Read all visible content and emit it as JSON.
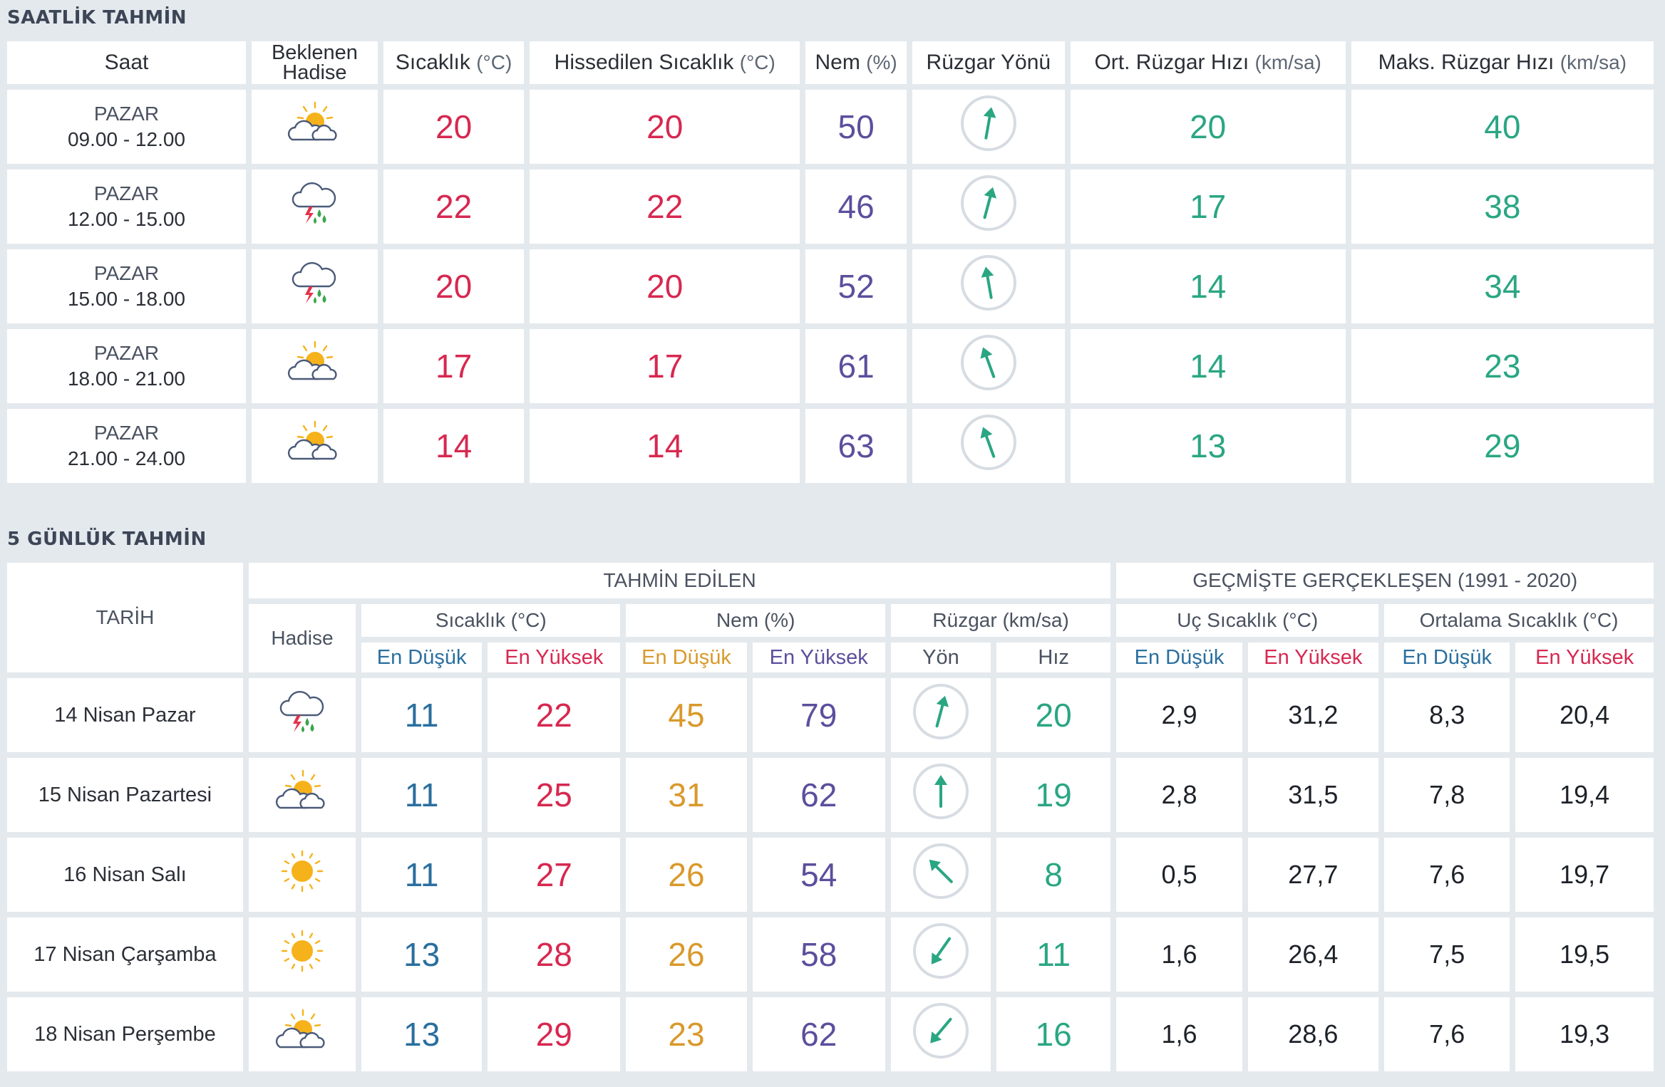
{
  "hourly": {
    "title": "SAATLİK TAHMİN",
    "headers": {
      "saat": "Saat",
      "hadise_1": "Beklenen",
      "hadise_2": "Hadise",
      "sicaklik": "Sıcaklık",
      "sicaklik_unit": "(°C)",
      "hissedilen": "Hissedilen Sıcaklık",
      "hissedilen_unit": "(°C)",
      "nem": "Nem",
      "nem_unit": "(%)",
      "ruzgar_yonu": "Rüzgar Yönü",
      "ort_ruzgar": "Ort. Rüzgar Hızı",
      "ort_ruzgar_unit": "(km/sa)",
      "maks_ruzgar": "Maks. Rüzgar Hızı",
      "maks_ruzgar_unit": "(km/sa)"
    },
    "rows": [
      {
        "day": "PAZAR",
        "time": "09.00 - 12.00",
        "icon": "partly-cloudy-icon",
        "temp": "20",
        "feels": "20",
        "humidity": "50",
        "wind_dir_deg": 190,
        "wind_avg": "20",
        "wind_max": "40"
      },
      {
        "day": "PAZAR",
        "time": "12.00 - 15.00",
        "icon": "thunderstorm-rain-icon",
        "temp": "22",
        "feels": "22",
        "humidity": "46",
        "wind_dir_deg": 195,
        "wind_avg": "17",
        "wind_max": "38"
      },
      {
        "day": "PAZAR",
        "time": "15.00 - 18.00",
        "icon": "thunderstorm-rain-icon",
        "temp": "20",
        "feels": "20",
        "humidity": "52",
        "wind_dir_deg": 170,
        "wind_avg": "14",
        "wind_max": "34"
      },
      {
        "day": "PAZAR",
        "time": "18.00 - 21.00",
        "icon": "partly-cloudy-icon",
        "temp": "17",
        "feels": "17",
        "humidity": "61",
        "wind_dir_deg": 160,
        "wind_avg": "14",
        "wind_max": "23"
      },
      {
        "day": "PAZAR",
        "time": "21.00 - 24.00",
        "icon": "partly-cloudy-icon",
        "temp": "14",
        "feels": "14",
        "humidity": "63",
        "wind_dir_deg": 160,
        "wind_avg": "13",
        "wind_max": "29"
      }
    ]
  },
  "daily": {
    "title": "5 GÜNLÜK TAHMİN",
    "headers": {
      "tarih": "TARİH",
      "tahmin_edilen": "TAHMİN EDİLEN",
      "gecmiste": "GEÇMİŞTE GERÇEKLEŞEN (1991 - 2020)",
      "hadise": "Hadise",
      "sicaklik": "Sıcaklık (°C)",
      "nem": "Nem (%)",
      "ruzgar": "Rüzgar (km/sa)",
      "uc_sicaklik": "Uç Sıcaklık (°C)",
      "ortalama_sicaklik": "Ortalama Sıcaklık (°C)",
      "en_dusuk": "En Düşük",
      "en_yuksek": "En Yüksek",
      "yon": "Yön",
      "hiz": "Hız"
    },
    "rows": [
      {
        "date": "14 Nisan Pazar",
        "icon": "thunderstorm-rain-icon",
        "temp_min": "11",
        "temp_max": "22",
        "hum_min": "45",
        "hum_max": "79",
        "wind_dir_deg": 195,
        "wind_speed": "20",
        "ext_min": "2,9",
        "ext_max": "31,2",
        "avg_min": "8,3",
        "avg_max": "20,4"
      },
      {
        "date": "15 Nisan Pazartesi",
        "icon": "partly-cloudy-icon",
        "temp_min": "11",
        "temp_max": "25",
        "hum_min": "31",
        "hum_max": "62",
        "wind_dir_deg": 180,
        "wind_speed": "19",
        "ext_min": "2,8",
        "ext_max": "31,5",
        "avg_min": "7,8",
        "avg_max": "19,4"
      },
      {
        "date": "16 Nisan Salı",
        "icon": "sunny-icon",
        "temp_min": "11",
        "temp_max": "27",
        "hum_min": "26",
        "hum_max": "54",
        "wind_dir_deg": 135,
        "wind_speed": "8",
        "ext_min": "0,5",
        "ext_max": "27,7",
        "avg_min": "7,6",
        "avg_max": "19,7"
      },
      {
        "date": "17 Nisan Çarşamba",
        "icon": "sunny-icon",
        "temp_min": "13",
        "temp_max": "28",
        "hum_min": "26",
        "hum_max": "58",
        "wind_dir_deg": 35,
        "wind_speed": "11",
        "ext_min": "1,6",
        "ext_max": "26,4",
        "avg_min": "7,5",
        "avg_max": "19,5"
      },
      {
        "date": "18 Nisan Perşembe",
        "icon": "partly-cloudy-icon",
        "temp_min": "13",
        "temp_max": "29",
        "hum_min": "23",
        "hum_max": "62",
        "wind_dir_deg": 40,
        "wind_speed": "16",
        "ext_min": "1,6",
        "ext_max": "28,6",
        "avg_min": "7,6",
        "avg_max": "19,3"
      }
    ]
  },
  "colors": {
    "red": "#d72850",
    "purple": "#5b4f9d",
    "green": "#2aa683",
    "blue": "#2a6f9f",
    "orange": "#d9992b",
    "sun": "#f6b21b",
    "cloud": "#4a5a78",
    "rain": "#3aa54a",
    "bolt": "#e4324a"
  }
}
